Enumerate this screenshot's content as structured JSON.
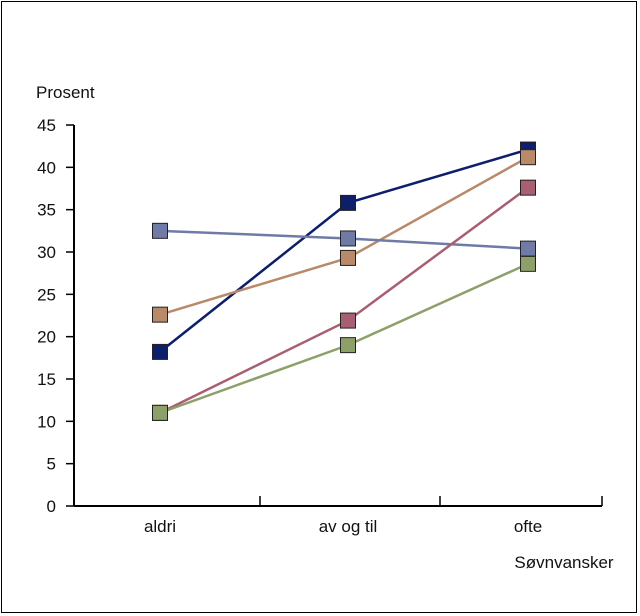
{
  "chart_data": {
    "type": "line",
    "ylabel": "Prosent",
    "xlabel": "Søvnvansker",
    "categories": [
      "aldri",
      "av og til",
      "ofte"
    ],
    "ylim": [
      0,
      45
    ],
    "yticks": [
      0,
      5,
      10,
      15,
      20,
      25,
      30,
      35,
      40,
      45
    ],
    "grid": false,
    "legend": "none",
    "series": [
      {
        "color": "#0d1f6b",
        "values": [
          18.2,
          35.8,
          42.1
        ]
      },
      {
        "color": "#b88a6a",
        "values": [
          22.6,
          29.3,
          41.2
        ]
      },
      {
        "color": "#6f7ba6",
        "values": [
          32.5,
          31.6,
          30.4
        ]
      },
      {
        "color": "#a85f72",
        "values": [
          11.0,
          21.9,
          37.6
        ]
      },
      {
        "color": "#8ea06a",
        "values": [
          11.0,
          19.0,
          28.6
        ]
      }
    ]
  }
}
